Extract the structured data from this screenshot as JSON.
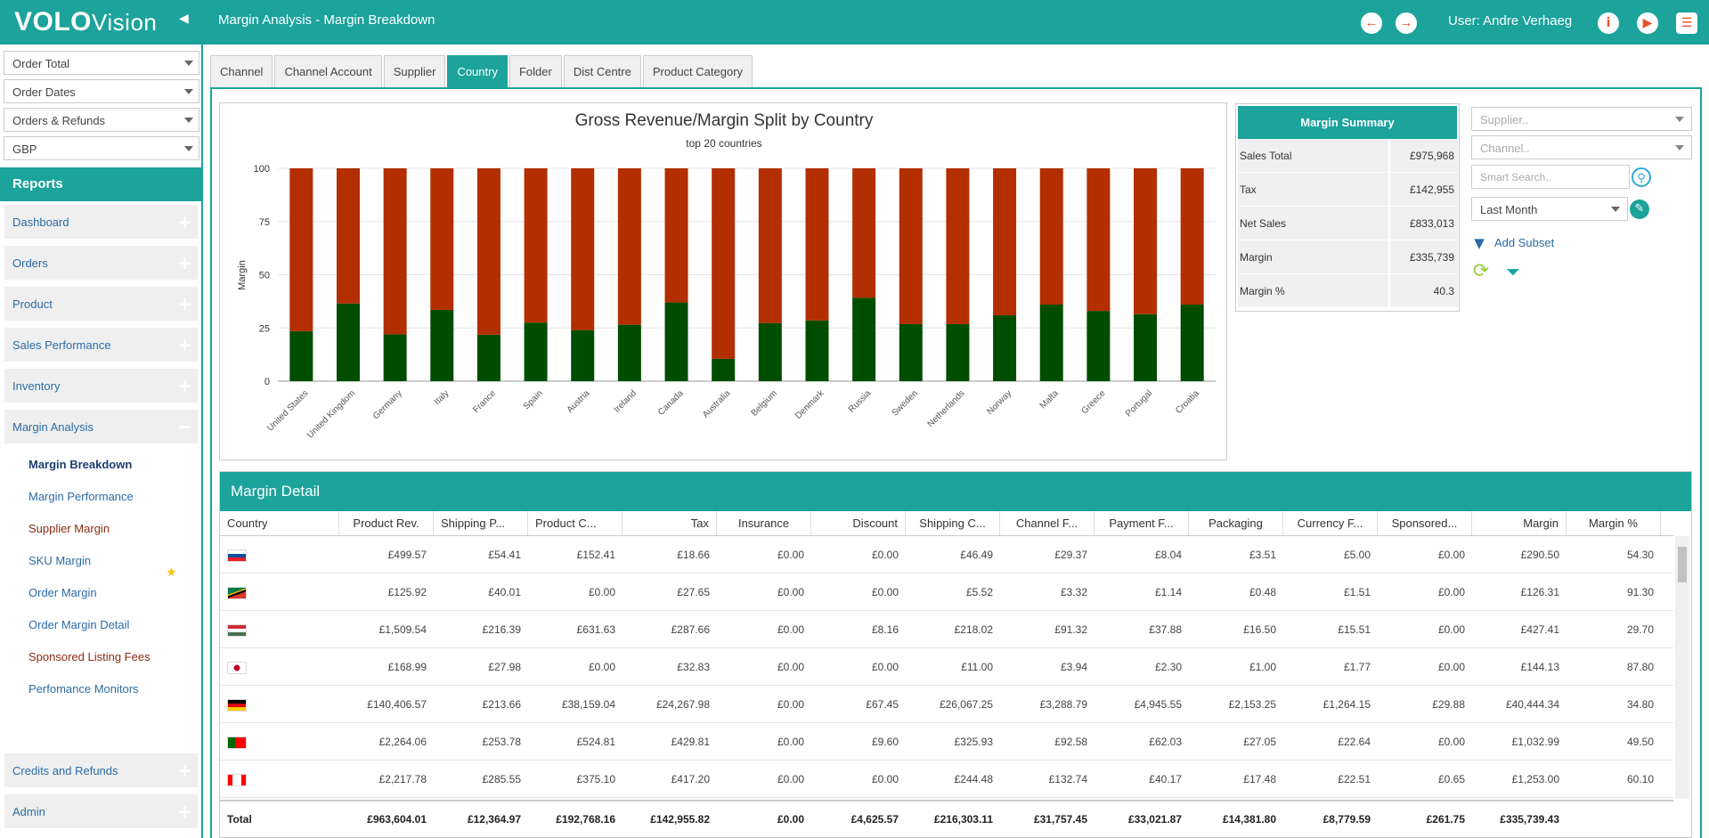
{
  "app": {
    "logo_bold": "VOLO",
    "logo_light": "Vision",
    "page_title": "Margin Analysis - Margin Breakdown",
    "user_label": "User: Andre Verhaeg"
  },
  "sidebar": {
    "selects": [
      "Order Total",
      "Order Dates",
      "Orders & Refunds",
      "GBP"
    ],
    "reports_label": "Reports",
    "menu": [
      {
        "label": "Dashboard",
        "sign": "+"
      },
      {
        "label": "Orders",
        "sign": "+"
      },
      {
        "label": "Product",
        "sign": "+"
      },
      {
        "label": "Sales Performance",
        "sign": "+"
      },
      {
        "label": "Inventory",
        "sign": "+"
      },
      {
        "label": "Margin Analysis",
        "sign": "−"
      }
    ],
    "sub_items": [
      "Margin Breakdown",
      "Margin Performance",
      "Supplier Margin",
      "SKU Margin",
      "Order Margin",
      "Order Margin Detail",
      "Sponsored Listing Fees",
      "Perfomance Monitors"
    ],
    "bottom_menu": [
      {
        "label": "Credits and Refunds",
        "sign": "+"
      },
      {
        "label": "Admin",
        "sign": "+"
      }
    ]
  },
  "tabs": [
    "Channel",
    "Channel Account",
    "Supplier",
    "Country",
    "Folder",
    "Dist Centre",
    "Product Category"
  ],
  "chart_data": {
    "type": "bar",
    "stacked": true,
    "title": "Gross Revenue/Margin Split by Country",
    "subtitle": "top 20 countries",
    "ylabel": "Margin",
    "ylim": [
      0,
      100
    ],
    "yticks": [
      0,
      25,
      50,
      75,
      100
    ],
    "grid": true,
    "categories": [
      "United States",
      "United Kingdom",
      "Germany",
      "Italy",
      "France",
      "Spain",
      "Austria",
      "Ireland",
      "Canada",
      "Australia",
      "Belgium",
      "Denmark",
      "Russia",
      "Sweden",
      "Netherlands",
      "Norway",
      "Malta",
      "Greece",
      "Portugal",
      "Croatia"
    ],
    "series": [
      {
        "color": "#004d00",
        "values": [
          23.5,
          36.5,
          22,
          33.5,
          21.8,
          27.5,
          24,
          26.5,
          37,
          10.5,
          27.3,
          28.5,
          39.2,
          26.8,
          26.8,
          31,
          36,
          33,
          31.5,
          36
        ]
      },
      {
        "color": "#b32e00",
        "values": [
          76.5,
          63.5,
          78,
          66.5,
          78.2,
          72.5,
          76,
          73.5,
          63,
          89.5,
          72.7,
          71.5,
          60.8,
          73.2,
          73.2,
          69,
          64,
          67,
          68.5,
          64
        ]
      }
    ]
  },
  "summary": {
    "title": "Margin Summary",
    "rows": [
      {
        "label": "Sales Total",
        "value": "£975,968"
      },
      {
        "label": "Tax",
        "value": "£142,955"
      },
      {
        "label": "Net Sales",
        "value": "£833,013"
      },
      {
        "label": "Margin",
        "value": "£335,739"
      },
      {
        "label": "Margin %",
        "value": "40.3"
      }
    ]
  },
  "filters": {
    "supplier_placeholder": "Supplier..",
    "channel_placeholder": "Channel..",
    "search_placeholder": "Smart Search..",
    "period_value": "Last Month",
    "add_subset_label": "Add Subset"
  },
  "detail": {
    "title": "Margin Detail",
    "columns": [
      "Country",
      "Product Rev.",
      "Shipping P...",
      "Product C...",
      "Tax",
      "Insurance",
      "Discount",
      "Shipping C...",
      "Channel F...",
      "Payment F...",
      "Packaging",
      "Currency F...",
      "Sponsored...",
      "Margin",
      "Margin %"
    ],
    "rows": [
      {
        "flag": "slovakia",
        "cells": [
          "£499.57",
          "£54.41",
          "£152.41",
          "£18.66",
          "£0.00",
          "£0.00",
          "£46.49",
          "£29.37",
          "£8.04",
          "£3.51",
          "£5.00",
          "£0.00",
          "£290.50",
          "54.30"
        ]
      },
      {
        "flag": "south-africa",
        "cells": [
          "£125.92",
          "£40.01",
          "£0.00",
          "£27.65",
          "£0.00",
          "£0.00",
          "£5.52",
          "£3.32",
          "£1.14",
          "£0.48",
          "£1.51",
          "£0.00",
          "£126.31",
          "91.30"
        ]
      },
      {
        "flag": "hungary",
        "cells": [
          "£1,509.54",
          "£216.39",
          "£631.63",
          "£287.66",
          "£0.00",
          "£8.16",
          "£218.02",
          "£91.32",
          "£37.88",
          "£16.50",
          "£15.51",
          "£0.00",
          "£427.41",
          "29.70"
        ]
      },
      {
        "flag": "japan",
        "cells": [
          "£168.99",
          "£27.98",
          "£0.00",
          "£32.83",
          "£0.00",
          "£0.00",
          "£11.00",
          "£3.94",
          "£2.30",
          "£1.00",
          "£1.77",
          "£0.00",
          "£144.13",
          "87.80"
        ]
      },
      {
        "flag": "germany",
        "cells": [
          "£140,406.57",
          "£213.66",
          "£38,159.04",
          "£24,267.98",
          "£0.00",
          "£67.45",
          "£26,067.25",
          "£3,288.79",
          "£4,945.55",
          "£2,153.25",
          "£1,264.15",
          "£29.88",
          "£40,444.34",
          "34.80"
        ]
      },
      {
        "flag": "portugal",
        "cells": [
          "£2,264.06",
          "£253.78",
          "£524.81",
          "£429.81",
          "£0.00",
          "£9.60",
          "£325.93",
          "£92.58",
          "£62.03",
          "£27.05",
          "£22.64",
          "£0.00",
          "£1,032.99",
          "49.50"
        ]
      },
      {
        "flag": "canada",
        "cells": [
          "£2,217.78",
          "£285.55",
          "£375.10",
          "£417.20",
          "£0.00",
          "£0.00",
          "£244.48",
          "£132.74",
          "£40.17",
          "£17.48",
          "£22.51",
          "£0.65",
          "£1,253.00",
          "60.10"
        ]
      }
    ],
    "total_label": "Total",
    "totals": [
      "£963,604.01",
      "£12,364.97",
      "£192,768.16",
      "£142,955.82",
      "£0.00",
      "£4,625.57",
      "£216,303.11",
      "£31,757.45",
      "£33,021.87",
      "£14,381.80",
      "£8,779.59",
      "£261.75",
      "£335,739.43",
      ""
    ]
  }
}
